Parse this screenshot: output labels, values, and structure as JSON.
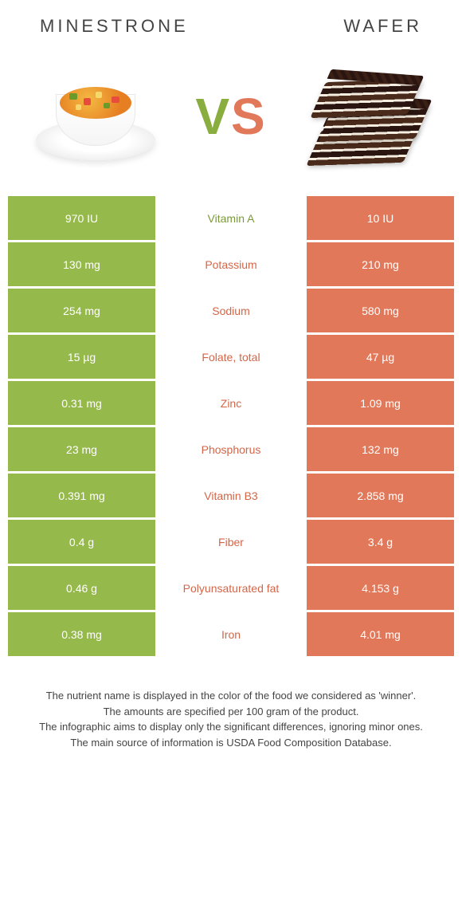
{
  "colors": {
    "left": "#96b94b",
    "right": "#e2785a",
    "left_text": "#7a9a3a",
    "right_text": "#d46648",
    "white": "#ffffff"
  },
  "fonts": {
    "title_size": 22,
    "vs_size": 64,
    "cell_size": 14,
    "footnote_size": 13
  },
  "left_title": "Minestrone",
  "right_title": "Wafer",
  "vs_v": "V",
  "vs_s": "S",
  "rows": [
    {
      "left": "970 IU",
      "mid": "Vitamin A",
      "right": "10 IU",
      "winner": "left"
    },
    {
      "left": "130 mg",
      "mid": "Potassium",
      "right": "210 mg",
      "winner": "right"
    },
    {
      "left": "254 mg",
      "mid": "Sodium",
      "right": "580 mg",
      "winner": "right"
    },
    {
      "left": "15 µg",
      "mid": "Folate, total",
      "right": "47 µg",
      "winner": "right"
    },
    {
      "left": "0.31 mg",
      "mid": "Zinc",
      "right": "1.09 mg",
      "winner": "right"
    },
    {
      "left": "23 mg",
      "mid": "Phosphorus",
      "right": "132 mg",
      "winner": "right"
    },
    {
      "left": "0.391 mg",
      "mid": "Vitamin B3",
      "right": "2.858 mg",
      "winner": "right"
    },
    {
      "left": "0.4 g",
      "mid": "Fiber",
      "right": "3.4 g",
      "winner": "right"
    },
    {
      "left": "0.46 g",
      "mid": "Polyunsaturated fat",
      "right": "4.153 g",
      "winner": "right"
    },
    {
      "left": "0.38 mg",
      "mid": "Iron",
      "right": "4.01 mg",
      "winner": "right"
    }
  ],
  "footnotes": [
    "The nutrient name is displayed in the color of the food we considered as 'winner'.",
    "The amounts are specified per 100 gram of the product.",
    "The infographic aims to display only the significant differences, ignoring minor ones.",
    "The main source of information is USDA Food Composition Database."
  ]
}
